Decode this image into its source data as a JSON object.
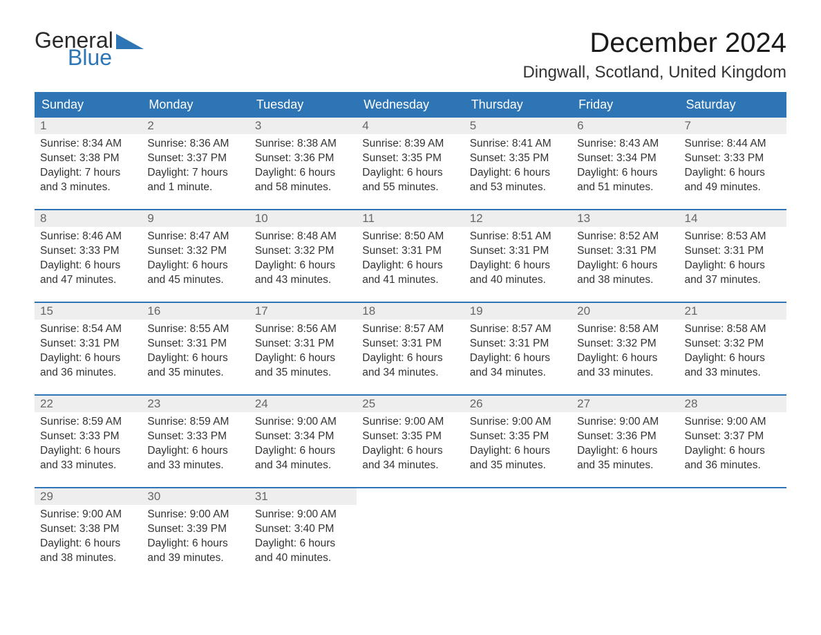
{
  "logo": {
    "text1": "General",
    "text2": "Blue",
    "accent_color": "#2e75b6"
  },
  "title": "December 2024",
  "location": "Dingwall, Scotland, United Kingdom",
  "colors": {
    "header_bg": "#2e75b6",
    "header_text": "#ffffff",
    "daynum_bg": "#eeeeee",
    "daynum_text": "#666666",
    "body_text": "#333333",
    "row_border": "#2e75b6",
    "page_bg": "#ffffff"
  },
  "typography": {
    "title_fontsize": 40,
    "location_fontsize": 24,
    "weekday_fontsize": 18,
    "daynum_fontsize": 17,
    "body_fontsize": 15.5
  },
  "weekdays": [
    "Sunday",
    "Monday",
    "Tuesday",
    "Wednesday",
    "Thursday",
    "Friday",
    "Saturday"
  ],
  "labels": {
    "sunrise": "Sunrise:",
    "sunset": "Sunset:",
    "daylight": "Daylight:"
  },
  "weeks": [
    [
      {
        "num": "1",
        "sunrise": "8:34 AM",
        "sunset": "3:38 PM",
        "daylight1": "7 hours",
        "daylight2": "and 3 minutes."
      },
      {
        "num": "2",
        "sunrise": "8:36 AM",
        "sunset": "3:37 PM",
        "daylight1": "7 hours",
        "daylight2": "and 1 minute."
      },
      {
        "num": "3",
        "sunrise": "8:38 AM",
        "sunset": "3:36 PM",
        "daylight1": "6 hours",
        "daylight2": "and 58 minutes."
      },
      {
        "num": "4",
        "sunrise": "8:39 AM",
        "sunset": "3:35 PM",
        "daylight1": "6 hours",
        "daylight2": "and 55 minutes."
      },
      {
        "num": "5",
        "sunrise": "8:41 AM",
        "sunset": "3:35 PM",
        "daylight1": "6 hours",
        "daylight2": "and 53 minutes."
      },
      {
        "num": "6",
        "sunrise": "8:43 AM",
        "sunset": "3:34 PM",
        "daylight1": "6 hours",
        "daylight2": "and 51 minutes."
      },
      {
        "num": "7",
        "sunrise": "8:44 AM",
        "sunset": "3:33 PM",
        "daylight1": "6 hours",
        "daylight2": "and 49 minutes."
      }
    ],
    [
      {
        "num": "8",
        "sunrise": "8:46 AM",
        "sunset": "3:33 PM",
        "daylight1": "6 hours",
        "daylight2": "and 47 minutes."
      },
      {
        "num": "9",
        "sunrise": "8:47 AM",
        "sunset": "3:32 PM",
        "daylight1": "6 hours",
        "daylight2": "and 45 minutes."
      },
      {
        "num": "10",
        "sunrise": "8:48 AM",
        "sunset": "3:32 PM",
        "daylight1": "6 hours",
        "daylight2": "and 43 minutes."
      },
      {
        "num": "11",
        "sunrise": "8:50 AM",
        "sunset": "3:31 PM",
        "daylight1": "6 hours",
        "daylight2": "and 41 minutes."
      },
      {
        "num": "12",
        "sunrise": "8:51 AM",
        "sunset": "3:31 PM",
        "daylight1": "6 hours",
        "daylight2": "and 40 minutes."
      },
      {
        "num": "13",
        "sunrise": "8:52 AM",
        "sunset": "3:31 PM",
        "daylight1": "6 hours",
        "daylight2": "and 38 minutes."
      },
      {
        "num": "14",
        "sunrise": "8:53 AM",
        "sunset": "3:31 PM",
        "daylight1": "6 hours",
        "daylight2": "and 37 minutes."
      }
    ],
    [
      {
        "num": "15",
        "sunrise": "8:54 AM",
        "sunset": "3:31 PM",
        "daylight1": "6 hours",
        "daylight2": "and 36 minutes."
      },
      {
        "num": "16",
        "sunrise": "8:55 AM",
        "sunset": "3:31 PM",
        "daylight1": "6 hours",
        "daylight2": "and 35 minutes."
      },
      {
        "num": "17",
        "sunrise": "8:56 AM",
        "sunset": "3:31 PM",
        "daylight1": "6 hours",
        "daylight2": "and 35 minutes."
      },
      {
        "num": "18",
        "sunrise": "8:57 AM",
        "sunset": "3:31 PM",
        "daylight1": "6 hours",
        "daylight2": "and 34 minutes."
      },
      {
        "num": "19",
        "sunrise": "8:57 AM",
        "sunset": "3:31 PM",
        "daylight1": "6 hours",
        "daylight2": "and 34 minutes."
      },
      {
        "num": "20",
        "sunrise": "8:58 AM",
        "sunset": "3:32 PM",
        "daylight1": "6 hours",
        "daylight2": "and 33 minutes."
      },
      {
        "num": "21",
        "sunrise": "8:58 AM",
        "sunset": "3:32 PM",
        "daylight1": "6 hours",
        "daylight2": "and 33 minutes."
      }
    ],
    [
      {
        "num": "22",
        "sunrise": "8:59 AM",
        "sunset": "3:33 PM",
        "daylight1": "6 hours",
        "daylight2": "and 33 minutes."
      },
      {
        "num": "23",
        "sunrise": "8:59 AM",
        "sunset": "3:33 PM",
        "daylight1": "6 hours",
        "daylight2": "and 33 minutes."
      },
      {
        "num": "24",
        "sunrise": "9:00 AM",
        "sunset": "3:34 PM",
        "daylight1": "6 hours",
        "daylight2": "and 34 minutes."
      },
      {
        "num": "25",
        "sunrise": "9:00 AM",
        "sunset": "3:35 PM",
        "daylight1": "6 hours",
        "daylight2": "and 34 minutes."
      },
      {
        "num": "26",
        "sunrise": "9:00 AM",
        "sunset": "3:35 PM",
        "daylight1": "6 hours",
        "daylight2": "and 35 minutes."
      },
      {
        "num": "27",
        "sunrise": "9:00 AM",
        "sunset": "3:36 PM",
        "daylight1": "6 hours",
        "daylight2": "and 35 minutes."
      },
      {
        "num": "28",
        "sunrise": "9:00 AM",
        "sunset": "3:37 PM",
        "daylight1": "6 hours",
        "daylight2": "and 36 minutes."
      }
    ],
    [
      {
        "num": "29",
        "sunrise": "9:00 AM",
        "sunset": "3:38 PM",
        "daylight1": "6 hours",
        "daylight2": "and 38 minutes."
      },
      {
        "num": "30",
        "sunrise": "9:00 AM",
        "sunset": "3:39 PM",
        "daylight1": "6 hours",
        "daylight2": "and 39 minutes."
      },
      {
        "num": "31",
        "sunrise": "9:00 AM",
        "sunset": "3:40 PM",
        "daylight1": "6 hours",
        "daylight2": "and 40 minutes."
      },
      null,
      null,
      null,
      null
    ]
  ]
}
